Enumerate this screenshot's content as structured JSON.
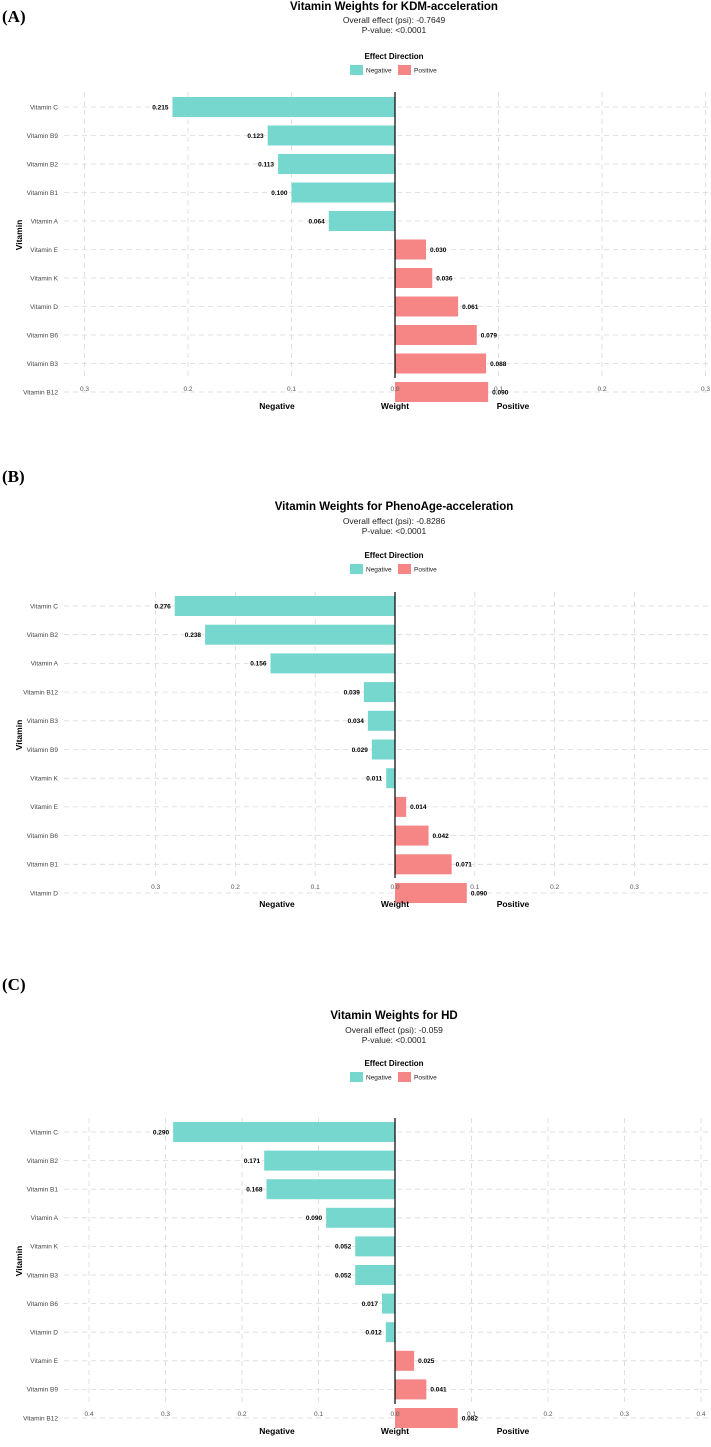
{
  "colors": {
    "negative": "#76D7CF",
    "positive": "#F68685"
  },
  "chart_data": [
    {
      "type": "bar",
      "panel_label": "(A)",
      "title": "Vitamin Weights for KDM-acceleration",
      "subtitle_effect": "Overall effect (psi): -0.7649",
      "subtitle_pvalue": "P-value: <0.0001",
      "legend_title": "Effect Direction",
      "legend": [
        "Negative",
        "Positive"
      ],
      "ylabel": "Vitamin",
      "xlabel": "Weight",
      "xlabel_left": "Negative",
      "xlabel_right": "Positive",
      "xlim": [
        -0.3,
        0.3
      ],
      "xticks": [
        -0.3,
        -0.2,
        -0.1,
        0.0,
        0.1,
        0.2,
        0.3
      ],
      "xtick_labels": [
        "0.3",
        "0.2",
        "0.1",
        "0.0",
        "0.1",
        "0.2",
        "0.3"
      ],
      "categories": [
        "Vitamin C",
        "Vitamin B9",
        "Vitamin B2",
        "Vitamin B1",
        "Vitamin A",
        "Vitamin E",
        "Vitamin K",
        "Vitamin D",
        "Vitamin B6",
        "Vitamin B3",
        "Vitamin B12"
      ],
      "values": [
        -0.215,
        -0.123,
        -0.113,
        -0.1,
        -0.064,
        0.03,
        0.036,
        0.061,
        0.079,
        0.088,
        0.09
      ],
      "value_labels": [
        "0.215",
        "0.123",
        "0.113",
        "0.100",
        "0.064",
        "0.030",
        "0.036",
        "0.061",
        "0.079",
        "0.088",
        "0.090"
      ]
    },
    {
      "type": "bar",
      "panel_label": "(B)",
      "title": "Vitamin Weights for PhenoAge-acceleration",
      "subtitle_effect": "Overall effect (psi): -0.8286",
      "subtitle_pvalue": "P-value: <0.0001",
      "legend_title": "Effect Direction",
      "legend": [
        "Negative",
        "Positive"
      ],
      "ylabel": "Vitamin",
      "xlabel": "Weight",
      "xlabel_left": "Negative",
      "xlabel_right": "Positive",
      "xlim": [
        -0.3,
        0.3
      ],
      "xticks": [
        -0.3,
        -0.2,
        -0.1,
        0.0,
        0.1,
        0.2,
        0.3
      ],
      "xtick_labels": [
        "0.3",
        "0.2",
        "0.1",
        "0.0",
        "0.1",
        "0.2",
        "0.3"
      ],
      "categories": [
        "Vitamin C",
        "Vitamin B2",
        "Vitamin A",
        "Vitamin B12",
        "Vitamin B3",
        "Vitamin B9",
        "Vitamin K",
        "Vitamin E",
        "Vitamin B6",
        "Vitamin B1",
        "Vitamin D"
      ],
      "values": [
        -0.276,
        -0.238,
        -0.156,
        -0.039,
        -0.034,
        -0.029,
        -0.011,
        0.014,
        0.042,
        0.071,
        0.09
      ],
      "value_labels": [
        "0.276",
        "0.238",
        "0.156",
        "0.039",
        "0.034",
        "0.029",
        "0.011",
        "0.014",
        "0.042",
        "0.071",
        "0.090"
      ]
    },
    {
      "type": "bar",
      "panel_label": "(C)",
      "title": "Vitamin Weights for HD",
      "subtitle_effect": "Overall effect (psi): -0.059",
      "subtitle_pvalue": "P-value: <0.0001",
      "legend_title": "Effect Direction",
      "legend": [
        "Negative",
        "Positive"
      ],
      "ylabel": "Vitamin",
      "xlabel": "Weight",
      "xlabel_left": "Negative",
      "xlabel_right": "Positive",
      "xlim": [
        -0.4,
        0.4
      ],
      "xticks": [
        -0.4,
        -0.3,
        -0.2,
        -0.1,
        0.0,
        0.1,
        0.2,
        0.3,
        0.4
      ],
      "xtick_labels": [
        "0.4",
        "0.3",
        "0.2",
        "0.1",
        "0.0",
        "0.1",
        "0.2",
        "0.3",
        "0.4"
      ],
      "categories": [
        "Vitamin C",
        "Vitamin B2",
        "Vitamin B1",
        "Vitamin A",
        "Vitamin K",
        "Vitamin B3",
        "Vitamin B6",
        "Vitamin D",
        "Vitamin E",
        "Vitamin B9",
        "Vitamin B12"
      ],
      "values": [
        -0.29,
        -0.171,
        -0.168,
        -0.09,
        -0.052,
        -0.052,
        -0.017,
        -0.012,
        0.025,
        0.041,
        0.082
      ],
      "value_labels": [
        "0.290",
        "0.171",
        "0.168",
        "0.090",
        "0.052",
        "0.052",
        "0.017",
        "0.012",
        "0.025",
        "0.041",
        "0.082"
      ]
    }
  ]
}
